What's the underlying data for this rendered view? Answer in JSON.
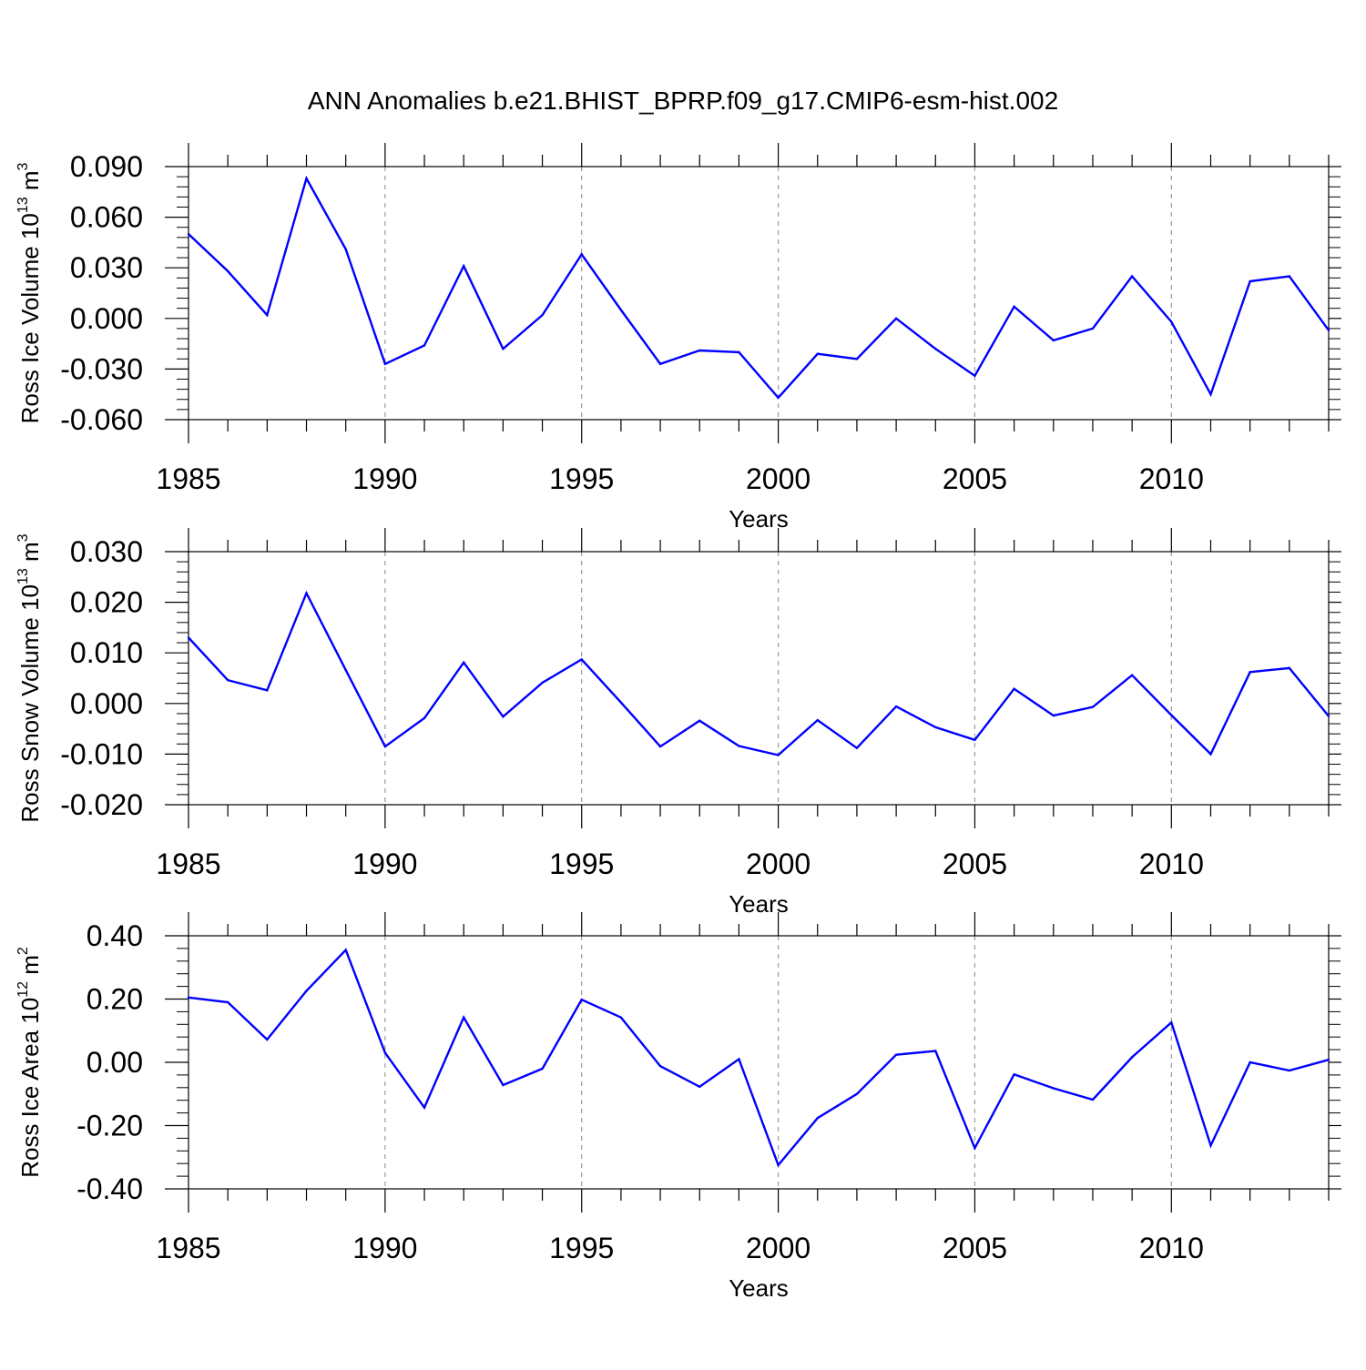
{
  "title": "ANN Anomalies b.e21.BHIST_BPRP.f09_g17.CMIP6-esm-hist.002",
  "colors": {
    "series": "#0000ff",
    "axis": "#000000",
    "grid": "#999999"
  },
  "chart_data": [
    {
      "type": "line",
      "ylabel": {
        "text": "Ross Ice Volume 10",
        "exponent": "13",
        "unit": "m",
        "unit_exponent": "3"
      },
      "xlabel": "Years",
      "xlim": [
        1985,
        2014
      ],
      "ylim": [
        -0.06,
        0.09
      ],
      "x_ticks": [
        1985,
        1990,
        1995,
        2000,
        2005,
        2010
      ],
      "y_ticks": [
        "0.090",
        "0.060",
        "0.030",
        "0.000",
        "-0.030",
        "-0.060"
      ],
      "y_tick_values": [
        0.09,
        0.06,
        0.03,
        0.0,
        -0.03,
        -0.06
      ],
      "gridlines_x": [
        1990,
        1995,
        2000,
        2005,
        2010
      ],
      "x": [
        1985,
        1986,
        1987,
        1988,
        1989,
        1990,
        1991,
        1992,
        1993,
        1994,
        1995,
        1996,
        1997,
        1998,
        1999,
        2000,
        2001,
        2002,
        2003,
        2004,
        2005,
        2006,
        2007,
        2008,
        2009,
        2010,
        2011,
        2012,
        2013,
        2014
      ],
      "values": [
        0.05,
        0.028,
        0.002,
        0.083,
        0.041,
        -0.027,
        -0.016,
        0.031,
        -0.018,
        0.002,
        0.038,
        0.005,
        -0.027,
        -0.019,
        -0.02,
        -0.047,
        -0.021,
        -0.024,
        0.0,
        -0.018,
        -0.034,
        0.007,
        -0.013,
        -0.006,
        0.025,
        -0.002,
        -0.045,
        0.022,
        0.025,
        -0.007
      ]
    },
    {
      "type": "line",
      "ylabel": {
        "text": "Ross Snow Volume 10",
        "exponent": "13",
        "unit": "m",
        "unit_exponent": "3"
      },
      "xlabel": "Years",
      "xlim": [
        1985,
        2014
      ],
      "ylim": [
        -0.02,
        0.03
      ],
      "x_ticks": [
        1985,
        1990,
        1995,
        2000,
        2005,
        2010
      ],
      "y_ticks": [
        "0.030",
        "0.020",
        "0.010",
        "0.000",
        "-0.010",
        "-0.020"
      ],
      "y_tick_values": [
        0.03,
        0.02,
        0.01,
        0.0,
        -0.01,
        -0.02
      ],
      "gridlines_x": [
        1990,
        1995,
        2000,
        2005,
        2010
      ],
      "x": [
        1985,
        1986,
        1987,
        1988,
        1989,
        1990,
        1991,
        1992,
        1993,
        1994,
        1995,
        1996,
        1997,
        1998,
        1999,
        2000,
        2001,
        2002,
        2003,
        2004,
        2005,
        2006,
        2007,
        2008,
        2009,
        2010,
        2011,
        2012,
        2013,
        2014
      ],
      "values": [
        0.013,
        0.0046,
        0.0026,
        0.0218,
        0.0066,
        -0.0085,
        -0.0029,
        0.0081,
        -0.0026,
        0.0041,
        0.0087,
        0.0002,
        -0.0085,
        -0.0034,
        -0.0084,
        -0.0102,
        -0.0033,
        -0.0088,
        -0.0006,
        -0.0047,
        -0.0072,
        0.0029,
        -0.0024,
        -0.0007,
        0.0056,
        -0.0023,
        -0.01,
        0.0062,
        0.007,
        -0.0025
      ]
    },
    {
      "type": "line",
      "ylabel": {
        "text": "Ross Ice Area 10",
        "exponent": "12",
        "unit": "m",
        "unit_exponent": "2"
      },
      "xlabel": "Years",
      "xlim": [
        1985,
        2014
      ],
      "ylim": [
        -0.4,
        0.4
      ],
      "x_ticks": [
        1985,
        1990,
        1995,
        2000,
        2005,
        2010
      ],
      "y_ticks": [
        "0.40",
        "0.20",
        "0.00",
        "-0.20",
        "-0.40"
      ],
      "y_tick_values": [
        0.4,
        0.2,
        0.0,
        -0.2,
        -0.4
      ],
      "gridlines_x": [
        1990,
        1995,
        2000,
        2005,
        2010
      ],
      "x": [
        1985,
        1986,
        1987,
        1988,
        1989,
        1990,
        1991,
        1992,
        1993,
        1994,
        1995,
        1996,
        1997,
        1998,
        1999,
        2000,
        2001,
        2002,
        2003,
        2004,
        2005,
        2006,
        2007,
        2008,
        2009,
        2010,
        2011,
        2012,
        2013,
        2014
      ],
      "values": [
        0.205,
        0.19,
        0.072,
        0.226,
        0.355,
        0.03,
        -0.143,
        0.142,
        -0.072,
        -0.02,
        0.198,
        0.142,
        -0.012,
        -0.077,
        0.01,
        -0.325,
        -0.176,
        -0.1,
        0.024,
        0.036,
        -0.271,
        -0.038,
        -0.082,
        -0.118,
        0.016,
        0.126,
        -0.263,
        0.0,
        -0.026,
        0.008
      ]
    }
  ]
}
